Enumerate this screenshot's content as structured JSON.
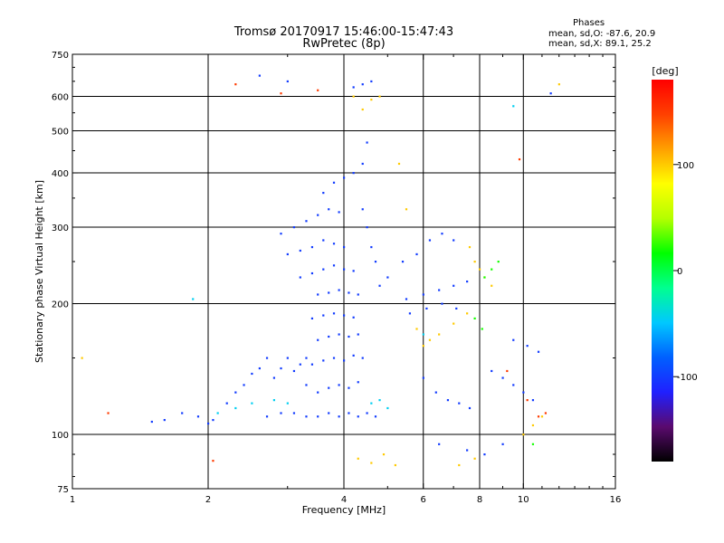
{
  "header": {
    "title_line1": "Tromsø 20170917 15:46:00-15:47:43",
    "title_line2": "RwPretec (8p)"
  },
  "phases": {
    "title": "Phases",
    "o_line": "mean, sd,O: -87.6, 20.9",
    "x_line": "mean, sd,X: 89.1, 25.2"
  },
  "chart_data": {
    "type": "scatter",
    "title": "Tromsø 20170917 15:46:00-15:47:43",
    "subtitle": "RwPretec (8p)",
    "xlabel": "Frequency [MHz]",
    "ylabel": "Stationary phase Virtual Height [km]",
    "x_scale": "log",
    "y_scale": "log",
    "xlim": [
      1,
      16
    ],
    "ylim": [
      75,
      750
    ],
    "x_ticks": [
      1,
      2,
      4,
      6,
      8,
      10,
      16
    ],
    "x_tick_labels": [
      "1",
      "2",
      "4",
      "6",
      "8",
      "10",
      "16"
    ],
    "y_ticks": [
      75,
      100,
      200,
      300,
      400,
      500,
      600,
      750
    ],
    "y_tick_labels": [
      "75",
      "100",
      "200",
      "300",
      "400",
      "500",
      "600",
      "750"
    ],
    "grid": true,
    "colorbar": {
      "label": "[deg]",
      "range": [
        -180,
        180
      ],
      "ticks": [
        100,
        0,
        -100
      ],
      "tick_labels": [
        "100",
        "0",
        "-100"
      ],
      "colors": [
        "#000000",
        "#5a0a6e",
        "#2020ff",
        "#0060ff",
        "#00c8ff",
        "#00ff90",
        "#00ff00",
        "#b4ff00",
        "#ffff00",
        "#ffa000",
        "#ff4000",
        "#ff0000"
      ]
    },
    "series": [
      {
        "color_deg": -100,
        "points": [
          [
            1.5,
            107
          ],
          [
            1.6,
            108
          ],
          [
            1.75,
            112
          ],
          [
            1.9,
            110
          ],
          [
            2.0,
            106
          ],
          [
            2.05,
            108
          ],
          [
            2.2,
            118
          ],
          [
            2.3,
            125
          ],
          [
            2.4,
            130
          ],
          [
            2.5,
            138
          ],
          [
            2.6,
            142
          ],
          [
            2.7,
            150
          ],
          [
            2.8,
            135
          ],
          [
            2.9,
            142
          ],
          [
            3.0,
            150
          ],
          [
            3.1,
            140
          ],
          [
            3.2,
            145
          ],
          [
            3.3,
            150
          ],
          [
            2.7,
            110
          ],
          [
            2.9,
            112
          ],
          [
            3.1,
            112
          ],
          [
            3.3,
            110
          ],
          [
            3.5,
            110
          ],
          [
            3.7,
            112
          ],
          [
            3.9,
            110
          ],
          [
            4.1,
            112
          ],
          [
            4.3,
            110
          ],
          [
            4.5,
            112
          ],
          [
            4.7,
            110
          ],
          [
            3.3,
            130
          ],
          [
            3.5,
            125
          ],
          [
            3.7,
            128
          ],
          [
            3.9,
            130
          ],
          [
            4.1,
            128
          ],
          [
            4.3,
            132
          ],
          [
            3.4,
            145
          ],
          [
            3.6,
            148
          ],
          [
            3.8,
            150
          ],
          [
            4.0,
            148
          ],
          [
            4.2,
            152
          ],
          [
            4.4,
            150
          ],
          [
            3.5,
            165
          ],
          [
            3.7,
            168
          ],
          [
            3.9,
            170
          ],
          [
            4.1,
            168
          ],
          [
            4.3,
            170
          ],
          [
            3.4,
            185
          ],
          [
            3.6,
            188
          ],
          [
            3.8,
            190
          ],
          [
            4.0,
            188
          ],
          [
            4.2,
            186
          ],
          [
            3.5,
            210
          ],
          [
            3.7,
            212
          ],
          [
            3.9,
            215
          ],
          [
            4.1,
            212
          ],
          [
            4.3,
            210
          ],
          [
            3.2,
            230
          ],
          [
            3.4,
            235
          ],
          [
            3.6,
            240
          ],
          [
            3.8,
            245
          ],
          [
            4.0,
            240
          ],
          [
            4.2,
            238
          ],
          [
            3.0,
            260
          ],
          [
            3.2,
            265
          ],
          [
            3.4,
            270
          ],
          [
            3.6,
            280
          ],
          [
            3.8,
            275
          ],
          [
            4.0,
            270
          ],
          [
            2.9,
            290
          ],
          [
            3.1,
            300
          ],
          [
            3.3,
            310
          ],
          [
            3.5,
            320
          ],
          [
            3.7,
            330
          ],
          [
            3.9,
            325
          ],
          [
            3.6,
            360
          ],
          [
            3.8,
            380
          ],
          [
            4.0,
            390
          ],
          [
            4.2,
            400
          ],
          [
            4.4,
            420
          ],
          [
            4.5,
            470
          ],
          [
            4.4,
            330
          ],
          [
            4.5,
            300
          ],
          [
            4.6,
            270
          ],
          [
            4.7,
            250
          ],
          [
            4.8,
            220
          ],
          [
            5.0,
            230
          ],
          [
            5.4,
            250
          ],
          [
            5.8,
            260
          ],
          [
            6.2,
            280
          ],
          [
            6.6,
            290
          ],
          [
            7.0,
            280
          ],
          [
            5.5,
            205
          ],
          [
            6.0,
            210
          ],
          [
            6.5,
            215
          ],
          [
            7.0,
            220
          ],
          [
            7.5,
            225
          ],
          [
            5.6,
            190
          ],
          [
            6.1,
            195
          ],
          [
            6.6,
            200
          ],
          [
            7.1,
            195
          ],
          [
            6.0,
            135
          ],
          [
            6.4,
            125
          ],
          [
            6.8,
            120
          ],
          [
            7.2,
            118
          ],
          [
            7.6,
            115
          ],
          [
            6.5,
            95
          ],
          [
            7.5,
            92
          ],
          [
            8.2,
            90
          ],
          [
            9.0,
            95
          ],
          [
            8.5,
            140
          ],
          [
            9.0,
            135
          ],
          [
            9.5,
            130
          ],
          [
            10.0,
            125
          ],
          [
            10.5,
            120
          ],
          [
            9.5,
            165
          ],
          [
            10.2,
            160
          ],
          [
            10.8,
            155
          ],
          [
            4.2,
            630
          ],
          [
            4.4,
            640
          ],
          [
            4.6,
            650
          ],
          [
            2.6,
            670
          ],
          [
            3.0,
            650
          ],
          [
            11.5,
            610
          ]
        ]
      },
      {
        "color_deg": -45,
        "points": [
          [
            1.85,
            205
          ],
          [
            2.1,
            112
          ],
          [
            2.3,
            115
          ],
          [
            2.5,
            118
          ],
          [
            2.8,
            120
          ],
          [
            3.0,
            118
          ],
          [
            4.6,
            118
          ],
          [
            4.8,
            120
          ],
          [
            5.0,
            115
          ],
          [
            6.0,
            170
          ],
          [
            9.5,
            570
          ]
        ]
      },
      {
        "color_deg": 100,
        "points": [
          [
            1.05,
            150
          ],
          [
            4.4,
            560
          ],
          [
            4.6,
            590
          ],
          [
            4.8,
            600
          ],
          [
            5.3,
            420
          ],
          [
            5.5,
            330
          ],
          [
            5.8,
            175
          ],
          [
            6.0,
            160
          ],
          [
            6.2,
            165
          ],
          [
            6.5,
            170
          ],
          [
            7.0,
            180
          ],
          [
            7.5,
            190
          ],
          [
            7.6,
            270
          ],
          [
            7.8,
            250
          ],
          [
            8.0,
            240
          ],
          [
            8.2,
            230
          ],
          [
            8.5,
            220
          ],
          [
            4.3,
            88
          ],
          [
            4.6,
            86
          ],
          [
            4.9,
            90
          ],
          [
            5.2,
            85
          ],
          [
            7.2,
            85
          ],
          [
            7.8,
            88
          ],
          [
            10.0,
            100
          ],
          [
            10.5,
            105
          ],
          [
            11.0,
            110
          ],
          [
            12.0,
            640
          ],
          [
            4.2,
            600
          ]
        ]
      },
      {
        "color_deg": 20,
        "points": [
          [
            8.2,
            230
          ],
          [
            8.5,
            240
          ],
          [
            8.8,
            250
          ],
          [
            8.1,
            175
          ],
          [
            7.8,
            185
          ],
          [
            10.5,
            95
          ]
        ]
      },
      {
        "color_deg": 150,
        "points": [
          [
            1.2,
            112
          ],
          [
            2.05,
            87
          ],
          [
            2.3,
            640
          ],
          [
            2.9,
            610
          ],
          [
            3.5,
            620
          ],
          [
            9.8,
            430
          ],
          [
            10.2,
            120
          ],
          [
            10.8,
            110
          ],
          [
            11.2,
            112
          ],
          [
            9.2,
            140
          ]
        ]
      }
    ]
  }
}
